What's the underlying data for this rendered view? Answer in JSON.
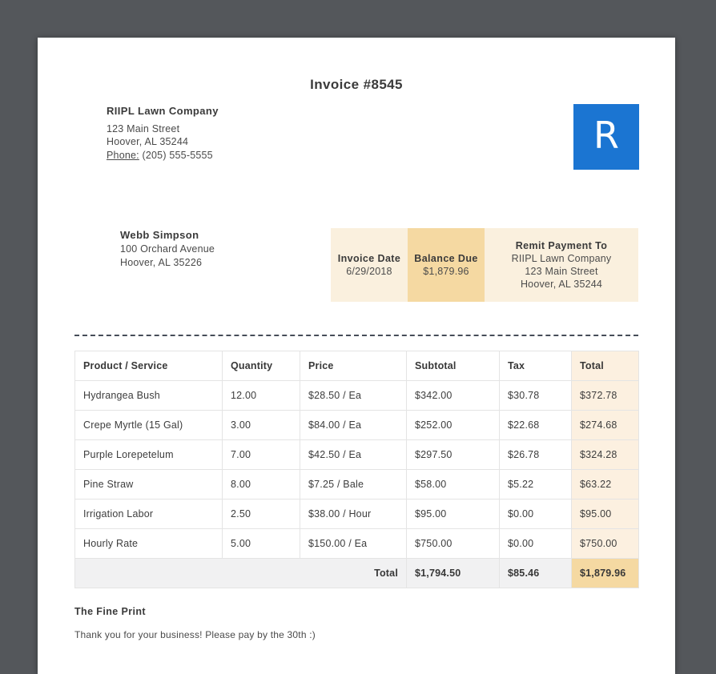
{
  "invoice": {
    "title": "Invoice #8545"
  },
  "company": {
    "name": "RIIPL Lawn Company",
    "address_line1": "123 Main Street",
    "address_line2": "Hoover, AL 35244",
    "phone_label": "Phone:",
    "phone_number": "(205) 555-5555",
    "logo_letter": "R"
  },
  "customer": {
    "name": "Webb Simpson",
    "address_line1": "100 Orchard Avenue",
    "address_line2": "Hoover, AL 35226"
  },
  "summary": {
    "invoice_date_label": "Invoice Date",
    "invoice_date": "6/29/2018",
    "balance_due_label": "Balance Due",
    "balance_due": "$1,879.96",
    "remit_label": "Remit Payment To",
    "remit_name": "RIIPL Lawn Company",
    "remit_address_line1": "123 Main Street",
    "remit_address_line2": "Hoover, AL 35244"
  },
  "table": {
    "headers": [
      "Product / Service",
      "Quantity",
      "Price",
      "Subtotal",
      "Tax",
      "Total"
    ],
    "rows": [
      [
        "Hydrangea Bush",
        "12.00",
        "$28.50 / Ea",
        "$342.00",
        "$30.78",
        "$372.78"
      ],
      [
        "Crepe Myrtle (15 Gal)",
        "3.00",
        "$84.00 / Ea",
        "$252.00",
        "$22.68",
        "$274.68"
      ],
      [
        "Purple Lorepetelum",
        "7.00",
        "$42.50 / Ea",
        "$297.50",
        "$26.78",
        "$324.28"
      ],
      [
        "Pine Straw",
        "8.00",
        "$7.25 / Bale",
        "$58.00",
        "$5.22",
        "$63.22"
      ],
      [
        "Irrigation Labor",
        "2.50",
        "$38.00 / Hour",
        "$95.00",
        "$0.00",
        "$95.00"
      ],
      [
        "Hourly Rate",
        "5.00",
        "$150.00 / Ea",
        "$750.00",
        "$0.00",
        "$750.00"
      ]
    ],
    "totals": {
      "label": "Total",
      "subtotal": "$1,794.50",
      "tax": "$85.46",
      "grand_total": "$1,879.96"
    }
  },
  "footer": {
    "fine_print_title": "The Fine Print",
    "fine_print_body": "Thank you for your business! Please pay by the 30th :)"
  },
  "colors": {
    "logo_blue": "#1b75d2",
    "cream_light": "#faf0de",
    "tan_highlight": "#f5d9a2",
    "total_column": "#fcf0e0",
    "canvas_background": "#54575b"
  }
}
